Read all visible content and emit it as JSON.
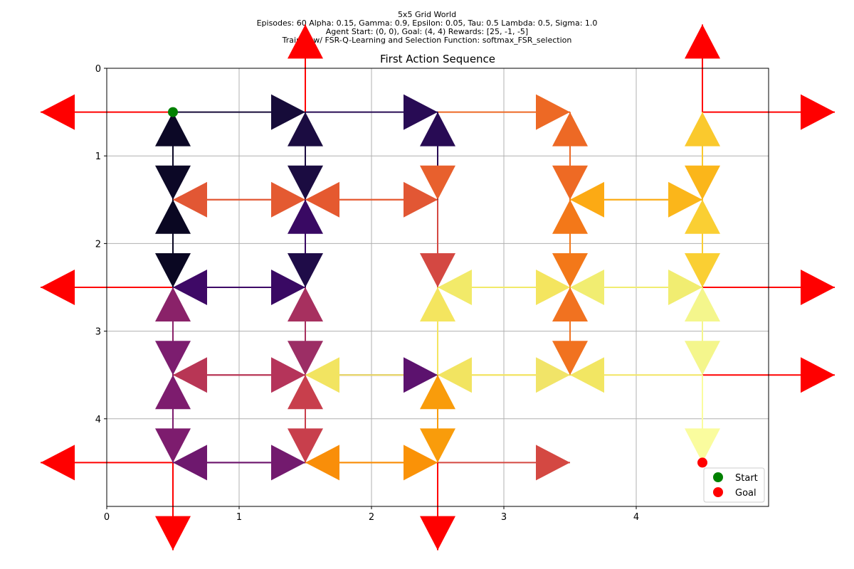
{
  "figure": {
    "suptitle_lines": [
      "5x5 Grid World",
      "Episodes: 60 Alpha: 0.15, Gamma: 0.9, Epsilon: 0.05, Tau: 0.5 Lambda: 0.5, Sigma: 1.0",
      "Agent Start: (0, 0), Goal: (4, 4) Rewards: [25, -1, -5]",
      "Trained w/ FSR-Q-Learning and Selection Function: softmax_FSR_selection"
    ]
  },
  "chart_data": {
    "type": "scatter",
    "title": "First Action Sequence",
    "xlabel": "",
    "ylabel": "",
    "xlim": [
      0,
      5
    ],
    "ylim": [
      5,
      0
    ],
    "y_inverted": true,
    "x_ticks": [
      "0",
      "1",
      "2",
      "3",
      "4"
    ],
    "y_ticks": [
      "0",
      "1",
      "2",
      "3",
      "4"
    ],
    "grid": true,
    "legend_placement": "lower-right",
    "legend": [
      {
        "label": "Start",
        "color": "#008000"
      },
      {
        "label": "Goal",
        "color": "#ff0000"
      }
    ],
    "start": {
      "x": 0.5,
      "y": 0.5
    },
    "goal": {
      "x": 4.5,
      "y": 4.5
    },
    "wall_color": "#ff0000",
    "arrows": [
      {
        "from": [
          0.5,
          0.5
        ],
        "dir": "left",
        "color": "#ff0000"
      },
      {
        "from": [
          0.5,
          0.5
        ],
        "dir": "right",
        "color": "#160b39"
      },
      {
        "from": [
          0.5,
          0.5
        ],
        "dir": "down",
        "color": "#0c0826"
      },
      {
        "from": [
          1.5,
          0.5
        ],
        "dir": "up",
        "color": "#ff0000"
      },
      {
        "from": [
          1.5,
          0.5
        ],
        "dir": "right",
        "color": "#280b54"
      },
      {
        "from": [
          1.5,
          0.5
        ],
        "dir": "down",
        "color": "#1b0c41"
      },
      {
        "from": [
          2.5,
          0.5
        ],
        "dir": "right",
        "color": "#ed6925"
      },
      {
        "from": [
          2.5,
          0.5
        ],
        "dir": "down",
        "color": "#e8602d"
      },
      {
        "from": [
          3.5,
          0.5
        ],
        "dir": "down",
        "color": "#ee6a24"
      },
      {
        "from": [
          4.5,
          0.5
        ],
        "dir": "up",
        "color": "#ff0000"
      },
      {
        "from": [
          4.5,
          0.5
        ],
        "dir": "right",
        "color": "#ff0000"
      },
      {
        "from": [
          4.5,
          0.5
        ],
        "dir": "down",
        "color": "#fbb61a"
      },
      {
        "from": [
          0.5,
          1.5
        ],
        "dir": "up",
        "color": "#0c0826"
      },
      {
        "from": [
          0.5,
          1.5
        ],
        "dir": "right",
        "color": "#e45a31"
      },
      {
        "from": [
          0.5,
          1.5
        ],
        "dir": "down",
        "color": "#0a0722"
      },
      {
        "from": [
          1.5,
          1.5
        ],
        "dir": "left",
        "color": "#e25734"
      },
      {
        "from": [
          1.5,
          1.5
        ],
        "dir": "up",
        "color": "#1b0c41"
      },
      {
        "from": [
          1.5,
          1.5
        ],
        "dir": "right",
        "color": "#e25734"
      },
      {
        "from": [
          1.5,
          1.5
        ],
        "dir": "down",
        "color": "#1f0c48"
      },
      {
        "from": [
          2.5,
          1.5
        ],
        "dir": "left",
        "color": "#e5592f"
      },
      {
        "from": [
          2.5,
          1.5
        ],
        "dir": "up",
        "color": "#280b54"
      },
      {
        "from": [
          2.5,
          1.5
        ],
        "dir": "down",
        "color": "#d44842"
      },
      {
        "from": [
          3.5,
          1.5
        ],
        "dir": "up",
        "color": "#ed6925"
      },
      {
        "from": [
          3.5,
          1.5
        ],
        "dir": "right",
        "color": "#fbb61a"
      },
      {
        "from": [
          3.5,
          1.5
        ],
        "dir": "down",
        "color": "#f37819"
      },
      {
        "from": [
          4.5,
          1.5
        ],
        "dir": "left",
        "color": "#fcaa14"
      },
      {
        "from": [
          4.5,
          1.5
        ],
        "dir": "up",
        "color": "#fac92d"
      },
      {
        "from": [
          4.5,
          1.5
        ],
        "dir": "down",
        "color": "#facf33"
      },
      {
        "from": [
          0.5,
          2.5
        ],
        "dir": "left",
        "color": "#ff0000"
      },
      {
        "from": [
          0.5,
          2.5
        ],
        "dir": "up",
        "color": "#0a0722"
      },
      {
        "from": [
          0.5,
          2.5
        ],
        "dir": "right",
        "color": "#390963"
      },
      {
        "from": [
          0.5,
          2.5
        ],
        "dir": "down",
        "color": "#7c1d6f"
      },
      {
        "from": [
          1.5,
          2.5
        ],
        "dir": "left",
        "color": "#3e0966"
      },
      {
        "from": [
          1.5,
          2.5
        ],
        "dir": "up",
        "color": "#390963"
      },
      {
        "from": [
          1.5,
          2.5
        ],
        "dir": "down",
        "color": "#9c2e65"
      },
      {
        "from": [
          2.5,
          2.5
        ],
        "dir": "right",
        "color": "#f4e55f"
      },
      {
        "from": [
          3.5,
          2.5
        ],
        "dir": "left",
        "color": "#f2ea69"
      },
      {
        "from": [
          3.5,
          2.5
        ],
        "dir": "up",
        "color": "#f37819"
      },
      {
        "from": [
          3.5,
          2.5
        ],
        "dir": "right",
        "color": "#f1ed71"
      },
      {
        "from": [
          3.5,
          2.5
        ],
        "dir": "down",
        "color": "#f17220"
      },
      {
        "from": [
          4.5,
          2.5
        ],
        "dir": "left",
        "color": "#f1ed71"
      },
      {
        "from": [
          4.5,
          2.5
        ],
        "dir": "up",
        "color": "#facf33"
      },
      {
        "from": [
          4.5,
          2.5
        ],
        "dir": "right",
        "color": "#ff0000"
      },
      {
        "from": [
          4.5,
          2.5
        ],
        "dir": "down",
        "color": "#f4f68c"
      },
      {
        "from": [
          0.5,
          3.5
        ],
        "dir": "up",
        "color": "#8a2269"
      },
      {
        "from": [
          0.5,
          3.5
        ],
        "dir": "right",
        "color": "#b5345a"
      },
      {
        "from": [
          0.5,
          3.5
        ],
        "dir": "down",
        "color": "#7d1c6e"
      },
      {
        "from": [
          1.5,
          3.5
        ],
        "dir": "left",
        "color": "#b83655"
      },
      {
        "from": [
          1.5,
          3.5
        ],
        "dir": "up",
        "color": "#a7305f"
      },
      {
        "from": [
          1.5,
          3.5
        ],
        "dir": "right",
        "color": "#5c126e"
      },
      {
        "from": [
          1.5,
          3.5
        ],
        "dir": "down",
        "color": "#c83f4c"
      },
      {
        "from": [
          2.5,
          3.5
        ],
        "dir": "left",
        "color": "#f2e461"
      },
      {
        "from": [
          2.5,
          3.5
        ],
        "dir": "up",
        "color": "#f4e55f"
      },
      {
        "from": [
          2.5,
          3.5
        ],
        "dir": "right",
        "color": "#f1e468"
      },
      {
        "from": [
          2.5,
          3.5
        ],
        "dir": "down",
        "color": "#f99c0b"
      },
      {
        "from": [
          3.5,
          3.5
        ],
        "dir": "up",
        "color": "#f17220"
      },
      {
        "from": [
          3.5,
          3.5
        ],
        "dir": "left",
        "color": "#f2e461"
      },
      {
        "from": [
          4.5,
          3.5
        ],
        "dir": "left",
        "color": "#f2e663"
      },
      {
        "from": [
          4.5,
          3.5
        ],
        "dir": "up",
        "color": "#f4f68c"
      },
      {
        "from": [
          4.5,
          3.5
        ],
        "dir": "right",
        "color": "#ff0000"
      },
      {
        "from": [
          4.5,
          3.5
        ],
        "dir": "down",
        "color": "#fafc9e"
      },
      {
        "from": [
          0.5,
          4.5
        ],
        "dir": "left",
        "color": "#ff0000"
      },
      {
        "from": [
          0.5,
          4.5
        ],
        "dir": "up",
        "color": "#7d1c6e"
      },
      {
        "from": [
          0.5,
          4.5
        ],
        "dir": "right",
        "color": "#731a6e"
      },
      {
        "from": [
          0.5,
          4.5
        ],
        "dir": "down",
        "color": "#ff0000"
      },
      {
        "from": [
          1.5,
          4.5
        ],
        "dir": "left",
        "color": "#6e186e"
      },
      {
        "from": [
          1.5,
          4.5
        ],
        "dir": "up",
        "color": "#c83f4c"
      },
      {
        "from": [
          1.5,
          4.5
        ],
        "dir": "right",
        "color": "#fa9207"
      },
      {
        "from": [
          2.5,
          4.5
        ],
        "dir": "left",
        "color": "#f98e09"
      },
      {
        "from": [
          2.5,
          4.5
        ],
        "dir": "up",
        "color": "#f99c0b"
      },
      {
        "from": [
          2.5,
          4.5
        ],
        "dir": "right",
        "color": "#d44842"
      },
      {
        "from": [
          2.5,
          4.5
        ],
        "dir": "down",
        "color": "#ff0000"
      }
    ]
  }
}
